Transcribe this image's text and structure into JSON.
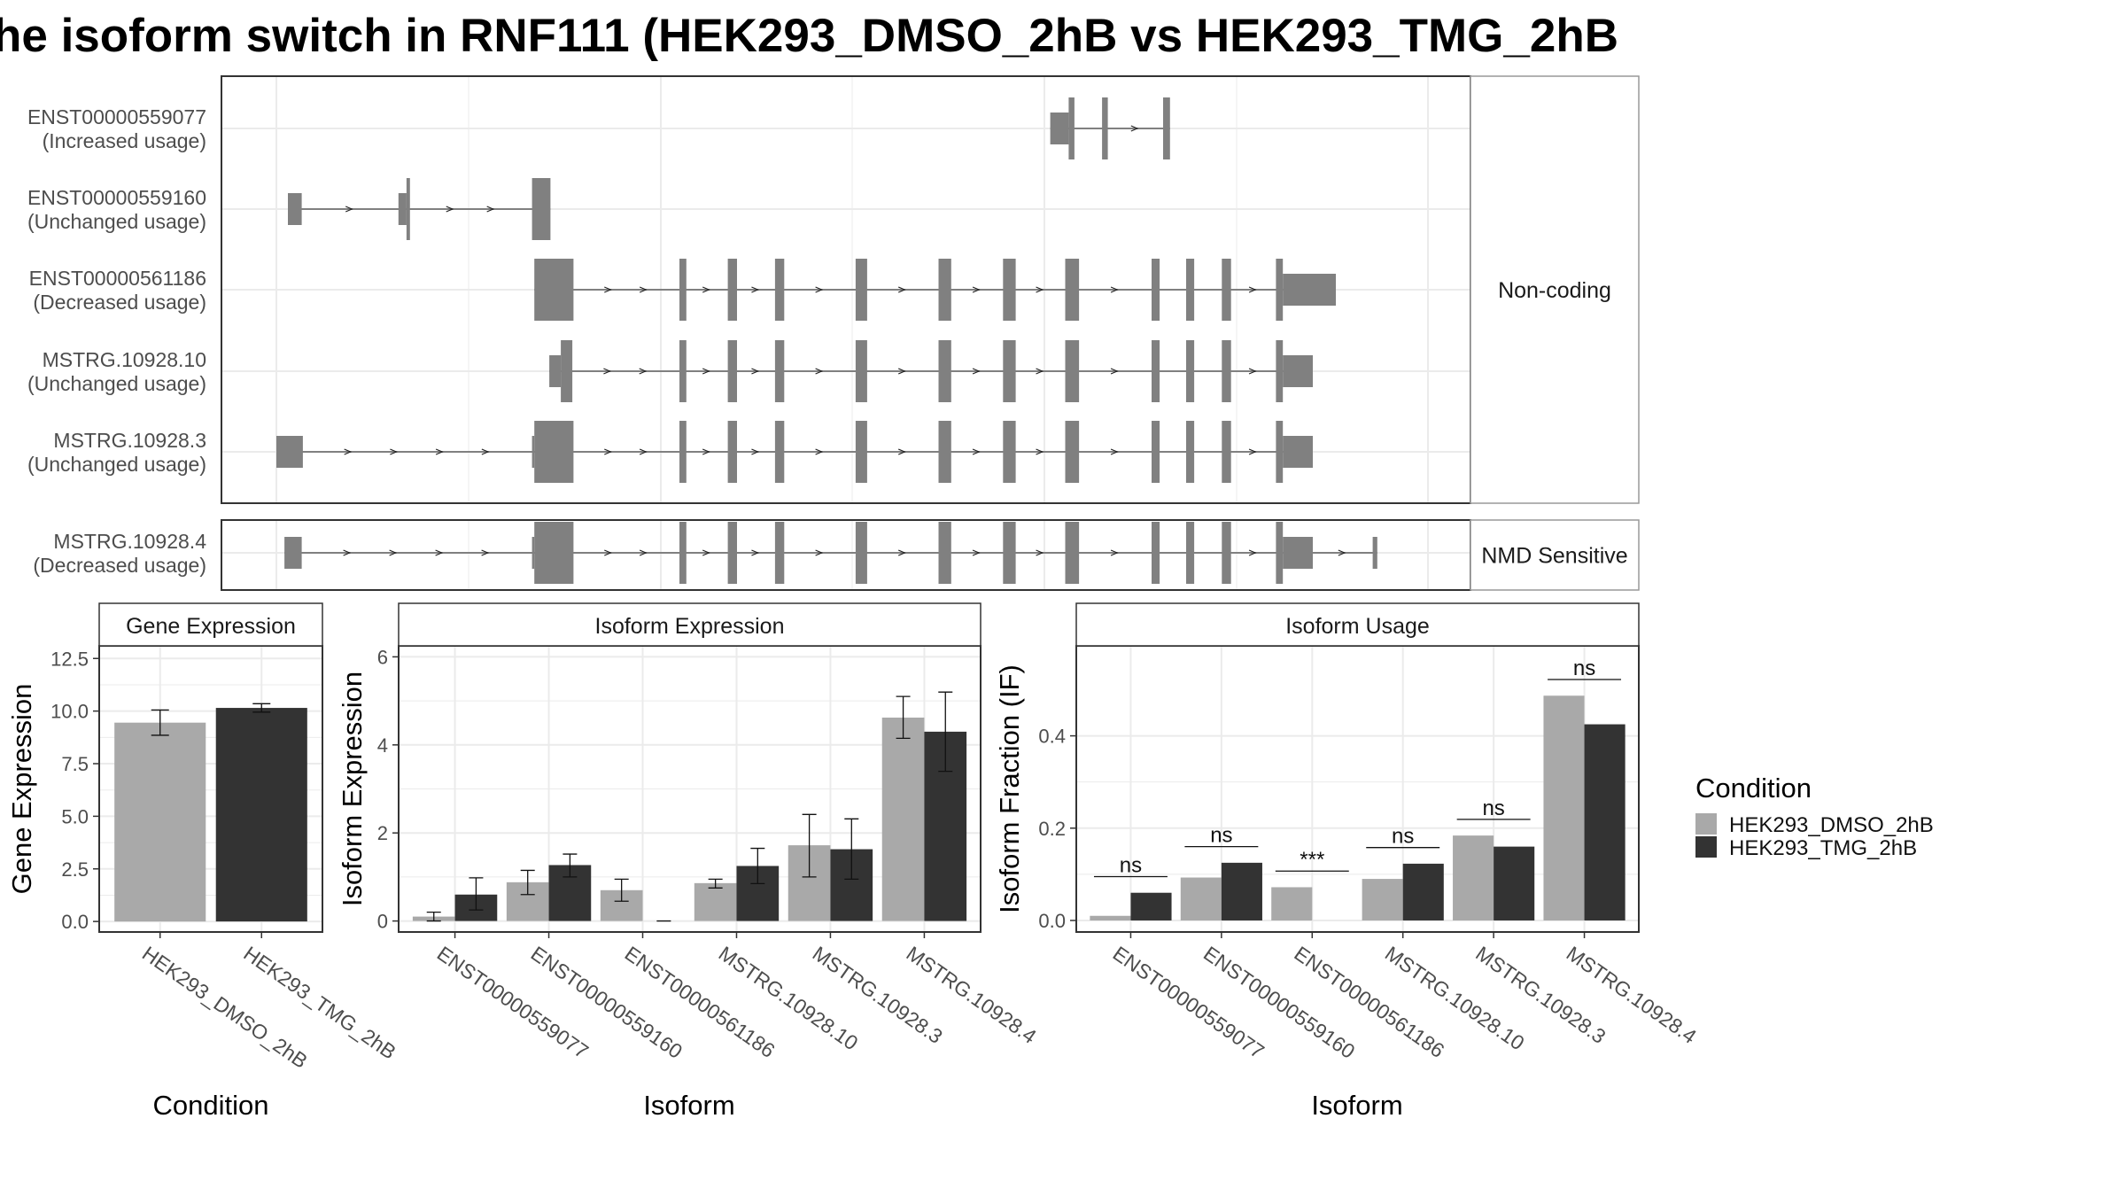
{
  "title": "he isoform switch in RNF111 (HEK293_DMSO_2hB vs HEK293_TMG_2hB",
  "colors": {
    "exon": "#808080",
    "dmso": "#A9A9A9",
    "tmg": "#333333",
    "panel_border": "#333333",
    "strip_fill": "#FFFFFF",
    "grid": "#EBEBEB",
    "text": "#000000",
    "axis_text": "#4D4D4D"
  },
  "structure": {
    "x_range": [
      0,
      1000
    ],
    "facets": [
      {
        "label": "Non-coding",
        "tracks": [
          {
            "isoform": "ENST00000559077",
            "usage": "(Increased usage)",
            "exons": [
              [
                672,
                688,
                "s"
              ],
              [
                688,
                693,
                "t"
              ],
              [
                717,
                722,
                "t"
              ],
              [
                770,
                776,
                "t"
              ]
            ]
          },
          {
            "isoform": "ENST00000559160",
            "usage": "(Unchanged usage)",
            "exons": [
              [
                10,
                22,
                "s"
              ],
              [
                106,
                113,
                "s"
              ],
              [
                113,
                116,
                "t"
              ],
              [
                222,
                238,
                "t"
              ]
            ]
          },
          {
            "isoform": "ENST00000561186",
            "usage": "(Decreased usage)",
            "exons": [
              [
                224,
                258,
                "t"
              ],
              [
                350,
                356,
                "t"
              ],
              [
                392,
                400,
                "t"
              ],
              [
                433,
                441,
                "t"
              ],
              [
                503,
                513,
                "t"
              ],
              [
                575,
                586,
                "t"
              ],
              [
                631,
                642,
                "t"
              ],
              [
                685,
                697,
                "t"
              ],
              [
                760,
                767,
                "t"
              ],
              [
                790,
                797,
                "t"
              ],
              [
                821,
                829,
                "t"
              ],
              [
                868,
                874,
                "t"
              ],
              [
                874,
                920,
                "s"
              ]
            ]
          },
          {
            "isoform": "MSTRG.10928.10",
            "usage": "(Unchanged usage)",
            "exons": [
              [
                237,
                247,
                "s"
              ],
              [
                247,
                257,
                "t"
              ],
              [
                350,
                356,
                "t"
              ],
              [
                392,
                400,
                "t"
              ],
              [
                433,
                441,
                "t"
              ],
              [
                503,
                513,
                "t"
              ],
              [
                575,
                586,
                "t"
              ],
              [
                631,
                642,
                "t"
              ],
              [
                685,
                697,
                "t"
              ],
              [
                760,
                767,
                "t"
              ],
              [
                790,
                797,
                "t"
              ],
              [
                821,
                829,
                "t"
              ],
              [
                868,
                874,
                "t"
              ],
              [
                874,
                900,
                "s"
              ]
            ]
          },
          {
            "isoform": "MSTRG.10928.3",
            "usage": "(Unchanged usage)",
            "exons": [
              [
                0,
                23,
                "s"
              ],
              [
                222,
                224,
                "s"
              ],
              [
                224,
                258,
                "t"
              ],
              [
                350,
                356,
                "t"
              ],
              [
                392,
                400,
                "t"
              ],
              [
                433,
                441,
                "t"
              ],
              [
                503,
                513,
                "t"
              ],
              [
                575,
                586,
                "t"
              ],
              [
                631,
                642,
                "t"
              ],
              [
                685,
                697,
                "t"
              ],
              [
                760,
                767,
                "t"
              ],
              [
                790,
                797,
                "t"
              ],
              [
                821,
                829,
                "t"
              ],
              [
                868,
                874,
                "t"
              ],
              [
                874,
                900,
                "s"
              ]
            ]
          }
        ]
      },
      {
        "label": "NMD Sensitive",
        "tracks": [
          {
            "isoform": "MSTRG.10928.4",
            "usage": "(Decreased usage)",
            "exons": [
              [
                7,
                22,
                "s"
              ],
              [
                222,
                224,
                "s"
              ],
              [
                224,
                258,
                "t"
              ],
              [
                350,
                356,
                "t"
              ],
              [
                392,
                400,
                "t"
              ],
              [
                433,
                441,
                "t"
              ],
              [
                503,
                513,
                "t"
              ],
              [
                575,
                586,
                "t"
              ],
              [
                631,
                642,
                "t"
              ],
              [
                685,
                697,
                "t"
              ],
              [
                760,
                767,
                "t"
              ],
              [
                790,
                797,
                "t"
              ],
              [
                821,
                829,
                "t"
              ],
              [
                868,
                874,
                "t"
              ],
              [
                874,
                900,
                "s"
              ],
              [
                952,
                956,
                "s"
              ]
            ]
          }
        ]
      }
    ]
  },
  "chart_data": [
    {
      "type": "bar",
      "panel": "Gene Expression",
      "xlabel": "Condition",
      "ylabel": "Gene Expression",
      "categories": [
        "HEK293_DMSO_2hB",
        "HEK293_TMG_2hB"
      ],
      "values": [
        9.45,
        10.15
      ],
      "errors": [
        [
          8.85,
          10.05
        ],
        [
          9.95,
          10.35
        ]
      ],
      "ylim": [
        -0.5,
        13.1
      ],
      "yticks": [
        "0.0",
        "2.5",
        "5.0",
        "7.5",
        "10.0",
        "12.5"
      ]
    },
    {
      "type": "bar",
      "panel": "Isoform Expression",
      "xlabel": "Isoform",
      "ylabel": "Isoform Expression",
      "categories": [
        "ENST00000559077",
        "ENST00000559160",
        "ENST00000561186",
        "MSTRG.10928.10",
        "MSTRG.10928.3",
        "MSTRG.10928.4"
      ],
      "series": [
        {
          "name": "HEK293_DMSO_2hB",
          "values": [
            0.1,
            0.88,
            0.7,
            0.86,
            1.72,
            4.62
          ],
          "errors": [
            [
              0.0,
              0.2
            ],
            [
              0.6,
              1.15
            ],
            [
              0.45,
              0.95
            ],
            [
              0.75,
              0.95
            ],
            [
              1.0,
              2.42
            ],
            [
              4.15,
              5.1
            ]
          ]
        },
        {
          "name": "HEK293_TMG_2hB",
          "values": [
            0.6,
            1.27,
            0.0,
            1.25,
            1.63,
            4.3
          ],
          "errors": [
            [
              0.25,
              0.98
            ],
            [
              1.0,
              1.52
            ],
            [
              0.0,
              0.0
            ],
            [
              0.85,
              1.65
            ],
            [
              0.95,
              2.32
            ],
            [
              3.4,
              5.2
            ]
          ]
        }
      ],
      "ylim": [
        -0.25,
        6.25
      ],
      "yticks": [
        "0",
        "2",
        "4",
        "6"
      ]
    },
    {
      "type": "bar",
      "panel": "Isoform Usage",
      "xlabel": "Isoform",
      "ylabel": "Isoform Fraction (IF)",
      "categories": [
        "ENST00000559077",
        "ENST00000559160",
        "ENST00000561186",
        "MSTRG.10928.10",
        "MSTRG.10928.3",
        "MSTRG.10928.4"
      ],
      "series": [
        {
          "name": "HEK293_DMSO_2hB",
          "values": [
            0.01,
            0.093,
            0.072,
            0.09,
            0.184,
            0.487
          ]
        },
        {
          "name": "HEK293_TMG_2hB",
          "values": [
            0.06,
            0.125,
            0.0,
            0.123,
            0.16,
            0.425
          ]
        }
      ],
      "significance": [
        "ns",
        "ns",
        "***",
        "ns",
        "ns",
        "ns"
      ],
      "ylim": [
        -0.025,
        0.595
      ],
      "yticks": [
        "0.0",
        "0.2",
        "0.4"
      ]
    }
  ],
  "legend": {
    "title": "Condition",
    "items": [
      "HEK293_DMSO_2hB",
      "HEK293_TMG_2hB"
    ]
  }
}
